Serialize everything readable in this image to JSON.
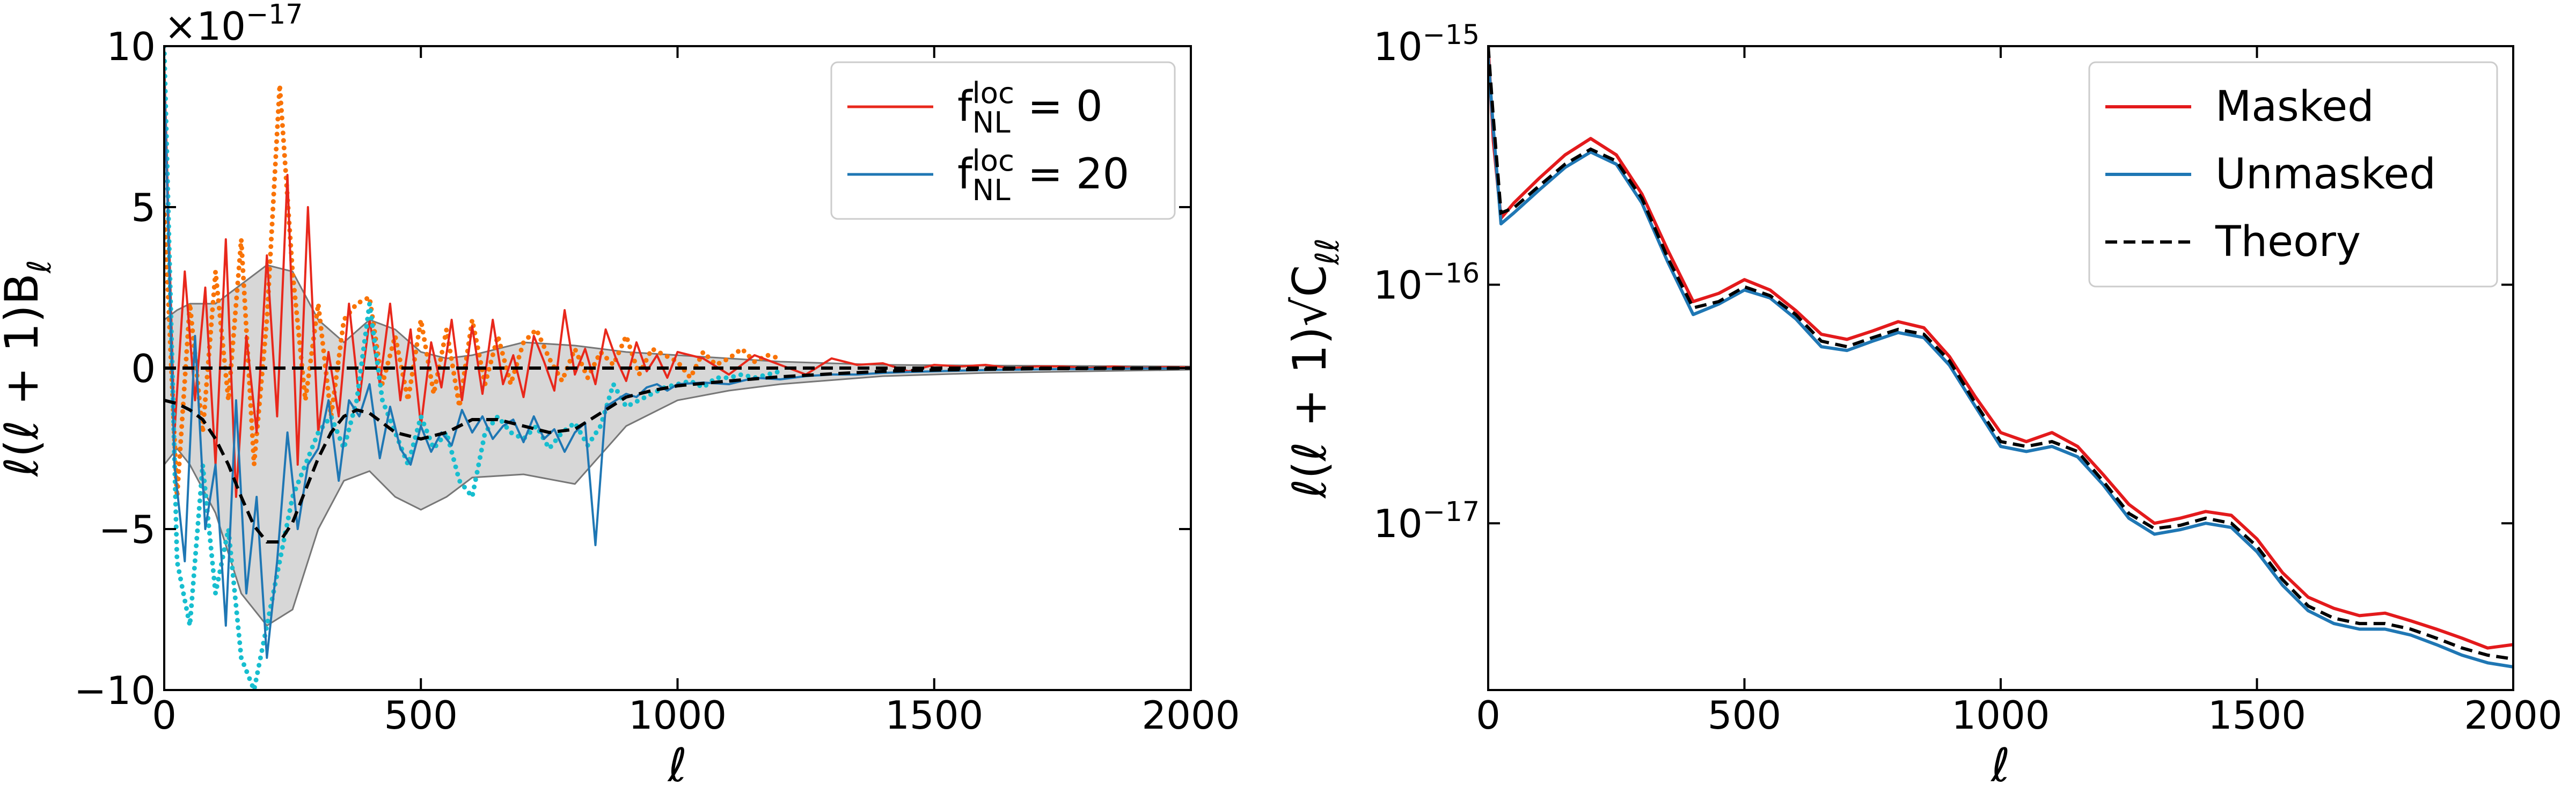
{
  "chart_data": [
    {
      "type": "line",
      "xlabel": "ℓ",
      "ylabel": "ℓ(ℓ + 1)B_{ℓ}",
      "y_offset_label": "×10^{−17}",
      "xlim": [
        0,
        2000
      ],
      "ylim": [
        -10,
        10
      ],
      "xticks": [
        0,
        500,
        1000,
        1500,
        2000
      ],
      "yticks": [
        {
          "value": -10,
          "label": "−10"
        },
        {
          "value": -5,
          "label": "−5"
        },
        0,
        5,
        10
      ],
      "grid": false,
      "legend": "upper right",
      "series": [
        {
          "color": "#b0b0b0",
          "style": "band",
          "x": [
            0,
            25,
            50,
            100,
            150,
            200,
            250,
            300,
            350,
            400,
            450,
            500,
            550,
            600,
            700,
            800,
            900,
            1000,
            1100,
            1200,
            1400,
            1600,
            2000
          ],
          "upper": [
            1.5,
            1.8,
            2.0,
            2.0,
            2.6,
            3.2,
            3.0,
            1.5,
            0.8,
            1.5,
            1.2,
            0.5,
            0.3,
            0.4,
            0.8,
            0.7,
            0.5,
            0.4,
            0.3,
            0.2,
            0.1,
            0.08,
            0.05
          ],
          "lower": [
            -3.0,
            -2.5,
            -3.0,
            -4.5,
            -7.0,
            -8.0,
            -7.5,
            -5.0,
            -3.5,
            -3.2,
            -4.0,
            -4.4,
            -4.0,
            -3.4,
            -3.3,
            -3.6,
            -1.8,
            -1.0,
            -0.7,
            -0.5,
            -0.25,
            -0.15,
            -0.05
          ]
        },
        {
          "color": "#f97306",
          "style": "dotted",
          "x": [
            0,
            25,
            50,
            75,
            100,
            125,
            150,
            175,
            200,
            225,
            250,
            275,
            300,
            325,
            350,
            375,
            400,
            425,
            450,
            475,
            500,
            525,
            550,
            575,
            600,
            625,
            650,
            675,
            700,
            725,
            750,
            775,
            800,
            825,
            850,
            875,
            900,
            925,
            950,
            975,
            1000,
            1025,
            1050,
            1075,
            1100,
            1125,
            1150,
            1175,
            1200
          ],
          "values": [
            5,
            -4,
            2,
            -2,
            3,
            -1,
            4,
            -3,
            1.5,
            8.8,
            3,
            -1,
            2,
            -1.5,
            1.5,
            2,
            2.2,
            -0.5,
            1,
            -1,
            1.5,
            -0.8,
            1.2,
            -1.2,
            1.5,
            -0.5,
            1,
            -0.5,
            0.8,
            1.2,
            0.3,
            -0.4,
            0.6,
            -0.3,
            0.5,
            0.1,
            1.0,
            -0.2,
            0.6,
            0.4,
            0.2,
            -0.3,
            0.5,
            0.1,
            0.3,
            0.6,
            0.2,
            0.4,
            0.3
          ]
        },
        {
          "name": "f^{loc}_{NL} = 0",
          "color": "#e8281c",
          "style": "solid",
          "x": [
            0,
            20,
            40,
            60,
            80,
            100,
            120,
            140,
            160,
            180,
            200,
            220,
            240,
            260,
            280,
            300,
            320,
            340,
            360,
            380,
            400,
            420,
            440,
            460,
            480,
            500,
            520,
            540,
            560,
            580,
            600,
            620,
            640,
            660,
            680,
            700,
            720,
            740,
            760,
            780,
            800,
            820,
            840,
            860,
            880,
            900,
            920,
            940,
            960,
            980,
            1000,
            1050,
            1100,
            1150,
            1200,
            1250,
            1300,
            1350,
            1400,
            1450,
            1500,
            1550,
            1600,
            1650,
            1700,
            1750,
            1800,
            1850,
            1900,
            1950,
            2000
          ],
          "values": [
            9.5,
            -2,
            3,
            -1,
            2.5,
            -3,
            4,
            -4,
            1,
            -2,
            3.5,
            -1.5,
            6,
            -3,
            5,
            -2,
            0.5,
            -1.5,
            2,
            -1,
            1.5,
            -0.5,
            2,
            -1,
            1.2,
            -1.8,
            0.8,
            -0.6,
            1.5,
            -1,
            1.3,
            -0.8,
            1.5,
            -0.5,
            0.4,
            -0.9,
            1.0,
            0.2,
            -0.7,
            1.8,
            -0.2,
            0.6,
            -0.5,
            1.2,
            0.3,
            -0.4,
            0.8,
            -0.1,
            0.4,
            -0.3,
            0.5,
            0.3,
            -0.2,
            0.4,
            0.1,
            -0.2,
            0.3,
            0.1,
            0.15,
            -0.1,
            0.1,
            0.05,
            0.1,
            0,
            0.05,
            0.05,
            0,
            0.05,
            0,
            0.03,
            0.02
          ]
        },
        {
          "color": "#17becf",
          "style": "dotted",
          "x": [
            0,
            25,
            50,
            75,
            100,
            125,
            150,
            175,
            200,
            225,
            250,
            275,
            300,
            325,
            350,
            375,
            400,
            425,
            450,
            475,
            500,
            525,
            550,
            575,
            600,
            625,
            650,
            675,
            700,
            725,
            750,
            775,
            800,
            825,
            850,
            875,
            900,
            925,
            950,
            975,
            1000,
            1025,
            1050,
            1075,
            1100,
            1125,
            1150,
            1175,
            1200
          ],
          "values": [
            10,
            -6,
            -8,
            -3,
            -7,
            -5,
            -9,
            -10,
            -8,
            -6,
            -4,
            -3,
            -2,
            -1.5,
            -2.5,
            -1,
            2,
            -1,
            -2,
            -3,
            -1.5,
            -2.5,
            -2,
            -3.5,
            -4,
            -2,
            -1.5,
            -2,
            -2.2,
            -1.8,
            -2.5,
            -2,
            -1.7,
            -2.4,
            -1.8,
            -0.5,
            -1.2,
            -1,
            -0.8,
            -0.6,
            -0.5,
            -0.4,
            -0.6,
            -0.3,
            -0.3,
            -0.2,
            -0.3,
            -0.2,
            -0.1
          ]
        },
        {
          "name": "f^{loc}_{NL} = 20",
          "color": "#1f77b4",
          "style": "solid",
          "x": [
            0,
            20,
            40,
            60,
            80,
            100,
            120,
            140,
            160,
            180,
            200,
            220,
            240,
            260,
            280,
            300,
            320,
            340,
            360,
            380,
            400,
            420,
            440,
            460,
            480,
            500,
            520,
            540,
            560,
            580,
            600,
            620,
            640,
            660,
            680,
            700,
            720,
            740,
            760,
            780,
            800,
            820,
            840,
            860,
            880,
            900,
            920,
            940,
            960,
            980,
            1000,
            1050,
            1100,
            1150,
            1200,
            1250,
            1300,
            1350,
            1400,
            1450,
            1500,
            1550,
            1600,
            1650,
            1700,
            1750,
            1800,
            1850,
            1900,
            1950,
            2000
          ],
          "values": [
            9,
            -3,
            -6,
            1,
            -5,
            -3,
            -8,
            -1,
            -7,
            -4,
            -9,
            -6,
            -2,
            -5,
            -3,
            -2.5,
            -1,
            -3.5,
            -1,
            -1.5,
            -0.5,
            -2.8,
            -1.2,
            -2.5,
            -3,
            -1.8,
            -2.6,
            -2,
            -2.4,
            -1.3,
            -2,
            -1.5,
            -2.2,
            -1.8,
            -1.6,
            -2.3,
            -1.5,
            -2.2,
            -1.9,
            -2.6,
            -2.0,
            -1.7,
            -5.5,
            -1.2,
            -1.0,
            -0.8,
            -0.9,
            -0.6,
            -0.5,
            -0.7,
            -0.5,
            -0.45,
            -0.5,
            -0.3,
            -0.35,
            -0.25,
            -0.2,
            -0.2,
            -0.15,
            -0.12,
            -0.1,
            -0.08,
            -0.06,
            -0.05,
            -0.04,
            -0.03,
            -0.03,
            -0.02,
            -0.01,
            -0.01,
            0
          ]
        },
        {
          "color": "#000000",
          "style": "dashed",
          "x": [
            0,
            2000
          ],
          "values": [
            0,
            0
          ]
        },
        {
          "color": "#000000",
          "style": "dashed",
          "x": [
            0,
            25,
            50,
            75,
            100,
            125,
            150,
            175,
            200,
            225,
            250,
            275,
            300,
            325,
            350,
            375,
            400,
            450,
            500,
            550,
            600,
            650,
            700,
            750,
            800,
            850,
            900,
            950,
            1000,
            1100,
            1200,
            1300,
            1400,
            1500,
            1700,
            2000
          ],
          "values": [
            -1.0,
            -1.1,
            -1.3,
            -1.6,
            -2.2,
            -3.0,
            -4.0,
            -4.9,
            -5.4,
            -5.4,
            -4.8,
            -3.8,
            -2.8,
            -2.0,
            -1.5,
            -1.3,
            -1.4,
            -2.0,
            -2.2,
            -2.0,
            -1.6,
            -1.6,
            -1.8,
            -2.0,
            -1.9,
            -1.4,
            -0.9,
            -0.7,
            -0.55,
            -0.4,
            -0.27,
            -0.18,
            -0.1,
            -0.06,
            -0.02,
            0
          ]
        }
      ]
    },
    {
      "type": "line",
      "xlabel": "ℓ",
      "ylabel": "ℓ(ℓ + 1)√C_{ℓℓ}",
      "ylog": true,
      "xlim": [
        0,
        2000
      ],
      "ylim": [
        2e-18,
        1e-15
      ],
      "xticks": [
        0,
        500,
        1000,
        1500,
        2000
      ],
      "yticks": [
        {
          "value": 1e-17,
          "label": "10^{−17}"
        },
        {
          "value": 1e-16,
          "label": "10^{−16}"
        },
        {
          "value": 1e-15,
          "label": "10^{−15}"
        }
      ],
      "grid": false,
      "legend": "upper right",
      "series": [
        {
          "name": "Masked",
          "color": "#e31a1c",
          "style": "solid",
          "x": [
            0,
            10,
            25,
            50,
            100,
            150,
            200,
            250,
            300,
            350,
            400,
            450,
            500,
            550,
            600,
            650,
            700,
            750,
            800,
            850,
            900,
            950,
            1000,
            1050,
            1100,
            1150,
            1200,
            1250,
            1300,
            1350,
            1400,
            1450,
            1500,
            1550,
            1600,
            1650,
            1700,
            1750,
            1800,
            1850,
            1900,
            1950,
            2000
          ],
          "values": [
            1e-15,
            4e-16,
            1.9e-16,
            2.2e-16,
            2.8e-16,
            3.5e-16,
            4.1e-16,
            3.5e-16,
            2.4e-16,
            1.4e-16,
            8.5e-17,
            9.2e-17,
            1.05e-16,
            9.5e-17,
            7.8e-17,
            6.2e-17,
            5.9e-17,
            6.4e-17,
            7e-17,
            6.6e-17,
            5e-17,
            3.4e-17,
            2.4e-17,
            2.2e-17,
            2.4e-17,
            2.1e-17,
            1.6e-17,
            1.2e-17,
            1e-17,
            1.05e-17,
            1.12e-17,
            1.08e-17,
            8.6e-18,
            6.2e-18,
            4.9e-18,
            4.4e-18,
            4.1e-18,
            4.2e-18,
            3.9e-18,
            3.6e-18,
            3.3e-18,
            3e-18,
            3.1e-18
          ]
        },
        {
          "name": "Unmasked",
          "color": "#1f77b4",
          "style": "solid",
          "x": [
            0,
            10,
            25,
            50,
            100,
            150,
            200,
            250,
            300,
            350,
            400,
            450,
            500,
            550,
            600,
            650,
            700,
            750,
            800,
            850,
            900,
            950,
            1000,
            1050,
            1100,
            1150,
            1200,
            1250,
            1300,
            1350,
            1400,
            1450,
            1500,
            1550,
            1600,
            1650,
            1700,
            1750,
            1800,
            1850,
            1900,
            1950,
            2000
          ],
          "values": [
            9e-16,
            4.5e-16,
            1.8e-16,
            2e-16,
            2.5e-16,
            3.1e-16,
            3.6e-16,
            3.2e-16,
            2.2e-16,
            1.25e-16,
            7.5e-17,
            8.3e-17,
            9.5e-17,
            8.8e-17,
            7.2e-17,
            5.5e-17,
            5.3e-17,
            5.8e-17,
            6.3e-17,
            6e-17,
            4.6e-17,
            3.1e-17,
            2.1e-17,
            2e-17,
            2.1e-17,
            1.9e-17,
            1.45e-17,
            1.05e-17,
            9e-18,
            9.4e-18,
            1e-17,
            9.6e-18,
            7.6e-18,
            5.5e-18,
            4.3e-18,
            3.8e-18,
            3.6e-18,
            3.6e-18,
            3.4e-18,
            3.1e-18,
            2.8e-18,
            2.6e-18,
            2.5e-18
          ]
        },
        {
          "name": "Theory",
          "color": "#000000",
          "style": "dashed",
          "x": [
            0,
            10,
            25,
            50,
            100,
            150,
            200,
            250,
            300,
            350,
            400,
            450,
            500,
            550,
            600,
            650,
            700,
            750,
            800,
            850,
            900,
            950,
            1000,
            1050,
            1100,
            1150,
            1200,
            1250,
            1300,
            1350,
            1400,
            1450,
            1500,
            1550,
            1600,
            1650,
            1700,
            1750,
            1800,
            1850,
            1900,
            1950,
            2000
          ],
          "values": [
            1e-15,
            5e-16,
            2e-16,
            2.1e-16,
            2.6e-16,
            3.2e-16,
            3.7e-16,
            3.3e-16,
            2.3e-16,
            1.3e-16,
            8e-17,
            8.5e-17,
            9.8e-17,
            9e-17,
            7.5e-17,
            5.8e-17,
            5.5e-17,
            6e-17,
            6.5e-17,
            6.2e-17,
            4.8e-17,
            3.2e-17,
            2.2e-17,
            2.1e-17,
            2.2e-17,
            2e-17,
            1.5e-17,
            1.1e-17,
            9.5e-18,
            9.8e-18,
            1.05e-17,
            1e-17,
            8e-18,
            5.8e-18,
            4.5e-18,
            4e-18,
            3.8e-18,
            3.8e-18,
            3.6e-18,
            3.3e-18,
            3e-18,
            2.8e-18,
            2.7e-18
          ]
        }
      ]
    }
  ]
}
